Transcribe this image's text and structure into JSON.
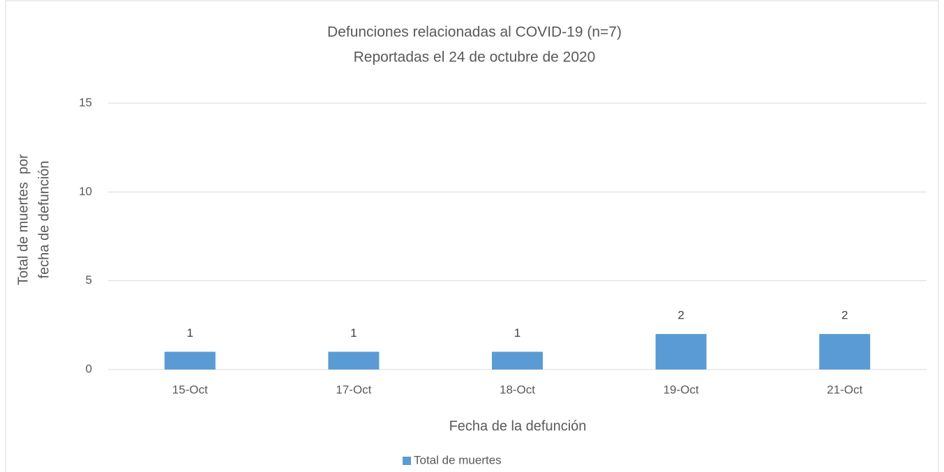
{
  "chart_data": {
    "type": "bar",
    "title": "Defunciones relacionadas al COVID-19 (n=7)",
    "subtitle": "Reportadas el 24 de octubre de 2020",
    "xlabel": "Fecha de la defunción",
    "ylabel": [
      "Total de muertes  por",
      "fecha de defunción"
    ],
    "categories": [
      "15-Oct",
      "17-Oct",
      "18-Oct",
      "19-Oct",
      "21-Oct"
    ],
    "series": [
      {
        "name": "Total de muertes",
        "color": "#5b9bd5",
        "values": [
          1,
          1,
          1,
          2,
          2
        ]
      }
    ],
    "ylim": [
      0,
      15
    ],
    "yticks": [
      0,
      5,
      10,
      15
    ],
    "grid": true,
    "legend": "bottom"
  }
}
